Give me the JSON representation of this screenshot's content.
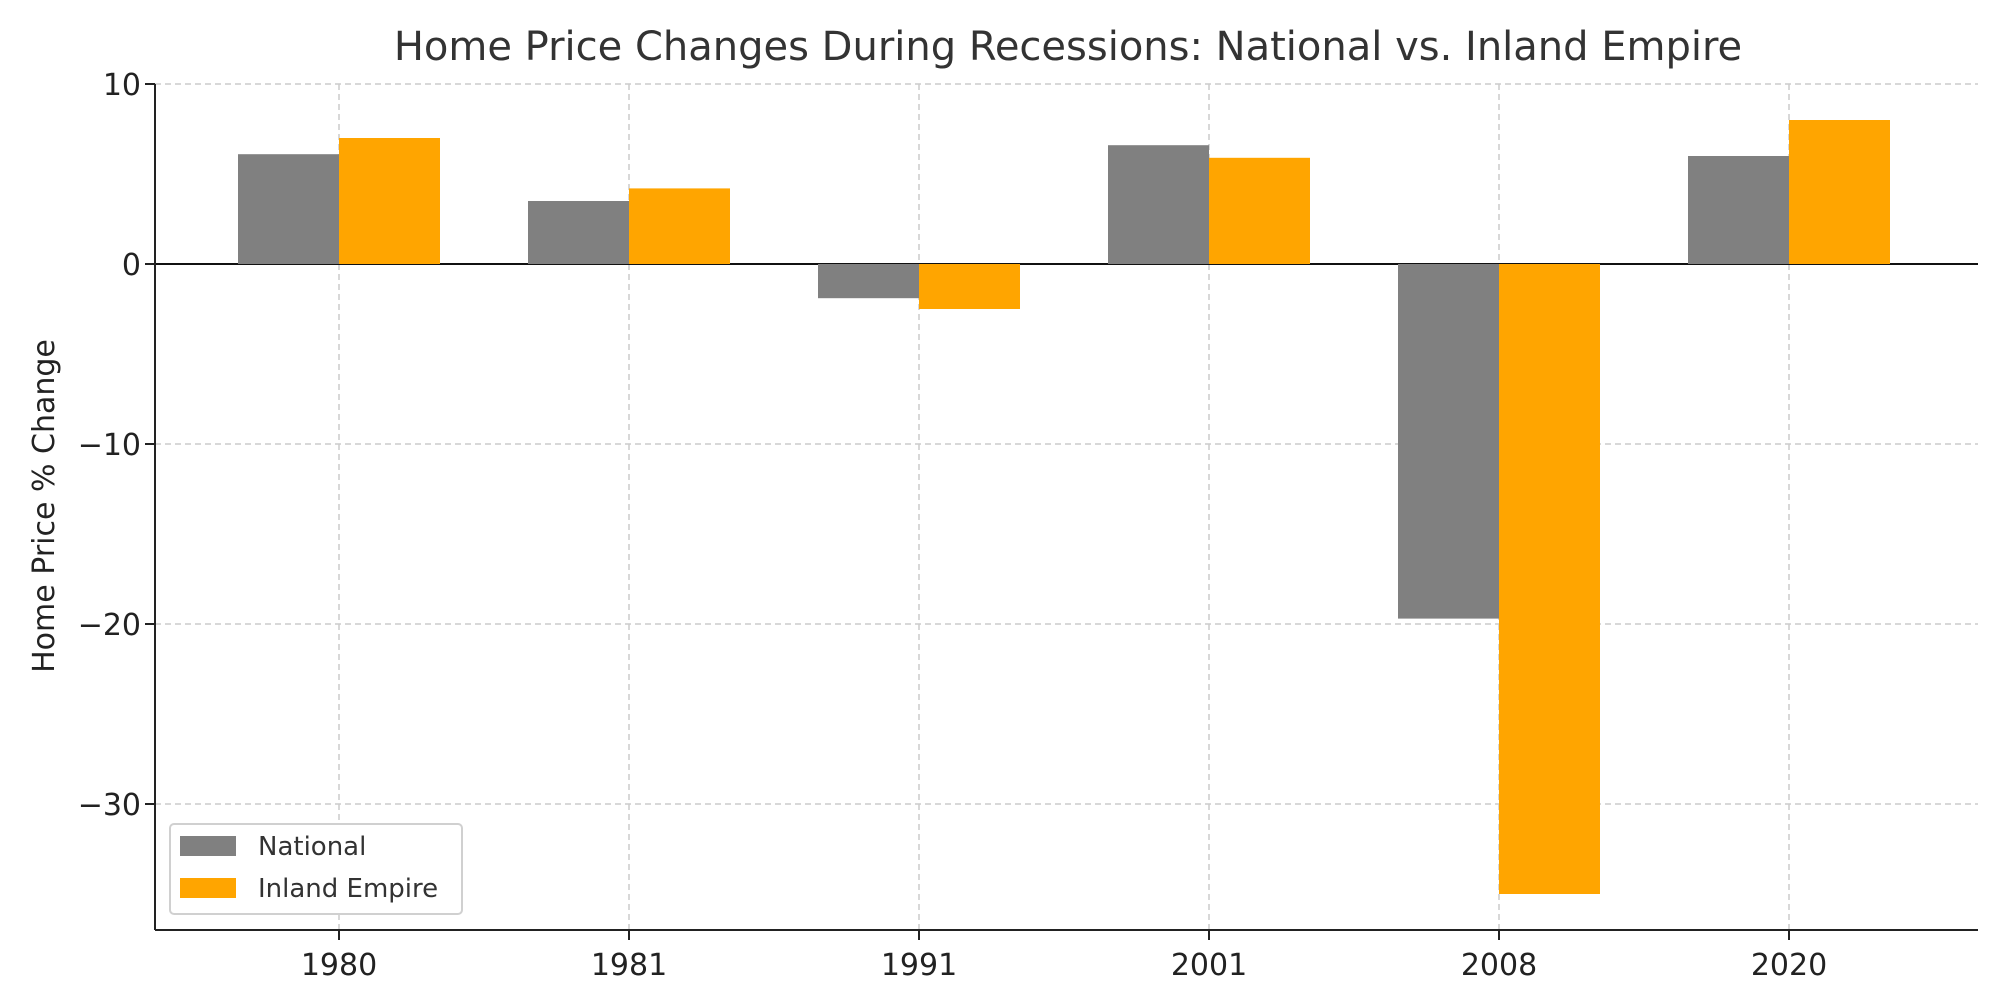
{
  "chart_data": {
    "type": "bar",
    "title": "Home Price Changes During Recessions: National vs. Inland Empire",
    "xlabel": "",
    "ylabel": "Home Price % Change",
    "categories": [
      "1980",
      "1981",
      "1991",
      "2001",
      "2008",
      "2020"
    ],
    "series": [
      {
        "name": "National",
        "color": "#808080",
        "values": [
          6.1,
          3.5,
          -1.9,
          6.6,
          -19.7,
          6.0
        ]
      },
      {
        "name": "Inland Empire",
        "color": "#ffa500",
        "values": [
          7.0,
          4.2,
          -2.5,
          5.9,
          -35.0,
          8.0
        ]
      }
    ],
    "ylim": [
      -37,
      10
    ],
    "yticks": [
      10,
      0,
      -10,
      -20,
      -30
    ],
    "ytick_labels": [
      "10",
      "0",
      "−10",
      "−20",
      "−30"
    ],
    "grid": true,
    "zero_line": true,
    "legend_position": "lower-left"
  }
}
